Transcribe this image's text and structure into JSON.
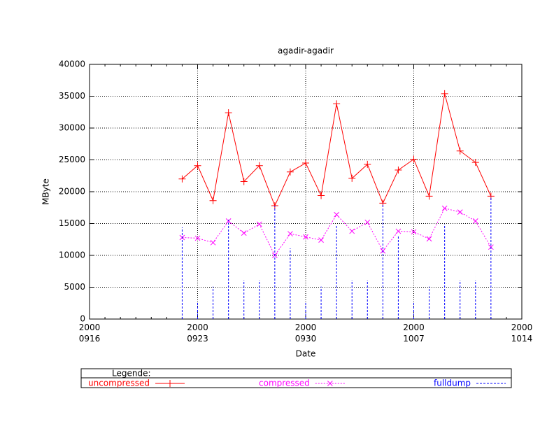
{
  "chart_data": {
    "type": "line",
    "title": "agadir-agadir",
    "x_label": "Date",
    "y_label": "MByte",
    "x": [
      "2000-09-22",
      "2000-09-23",
      "2000-09-24",
      "2000-09-25",
      "2000-09-26",
      "2000-09-27",
      "2000-09-28",
      "2000-09-29",
      "2000-09-30",
      "2000-10-01",
      "2000-10-02",
      "2000-10-03",
      "2000-10-04",
      "2000-10-05",
      "2000-10-06",
      "2000-10-07",
      "2000-10-08",
      "2000-10-09",
      "2000-10-10",
      "2000-10-11",
      "2000-10-12"
    ],
    "series": [
      {
        "name": "uncompressed",
        "color": "#ff0000",
        "style": "linespoints",
        "marker": "plus",
        "values": [
          22000,
          24100,
          18600,
          32400,
          21600,
          24100,
          17800,
          23100,
          24500,
          19400,
          33800,
          22100,
          24300,
          18200,
          23400,
          25100,
          19300,
          35400,
          26400,
          24600,
          19300
        ]
      },
      {
        "name": "compressed",
        "color": "#ff00ff",
        "style": "linespoints",
        "marker": "cross",
        "values": [
          12800,
          12700,
          12000,
          15400,
          13500,
          14900,
          10000,
          13400,
          12900,
          12400,
          16400,
          13800,
          15200,
          10700,
          13800,
          13700,
          12600,
          17400,
          16800,
          15400,
          11300
        ]
      },
      {
        "name": "fulldump",
        "color": "#0000ff",
        "style": "impulses",
        "values": [
          14400,
          2600,
          5100,
          15600,
          6100,
          6100,
          17800,
          11100,
          2600,
          5100,
          14700,
          6100,
          6100,
          18200,
          13000,
          2600,
          5100,
          14900,
          6100,
          6100,
          19300
        ]
      }
    ],
    "xlim": [
      "2000-09-16",
      "2000-10-14"
    ],
    "xticks": [
      {
        "value": "2000-09-16",
        "label": "2000\n0916"
      },
      {
        "value": "2000-09-23",
        "label": "2000\n0923"
      },
      {
        "value": "2000-09-30",
        "label": "2000\n0930"
      },
      {
        "value": "2000-10-07",
        "label": "2000\n1007"
      },
      {
        "value": "2000-10-14",
        "label": "2000\n1014"
      }
    ],
    "ylim": [
      0,
      40000
    ],
    "yticks": [
      0,
      5000,
      10000,
      15000,
      20000,
      25000,
      30000,
      35000,
      40000
    ],
    "grid": true,
    "legend_title": "Legende:",
    "legend_position": "below"
  }
}
